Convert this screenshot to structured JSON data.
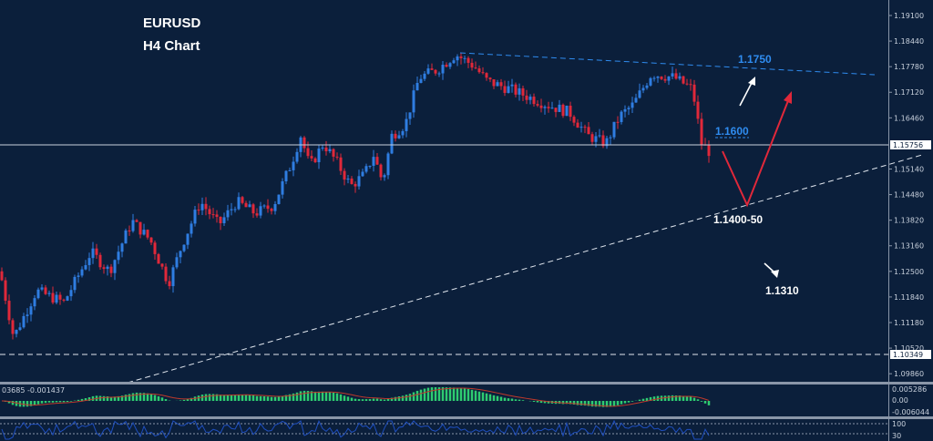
{
  "header": {
    "symbol": "EURUSD",
    "timeframe": "H4 Chart"
  },
  "colors": {
    "background": "#0b1f3b",
    "bull": "#2f7de1",
    "bear": "#e0283a",
    "macd_hist": "#2ecc71",
    "macd_signal": "#c0392b",
    "rsi": "#1f4fbf",
    "annotation_blue": "#2f8cf0"
  },
  "chart_data": {
    "type": "candlestick",
    "title": "EURUSD",
    "subtitle": "H4 Chart",
    "ylim": [
      1.0966,
      1.1945
    ],
    "yticks": [
      "1.19100",
      "1.18440",
      "1.17780",
      "1.17120",
      "1.16460",
      "1.15140",
      "1.14480",
      "1.13820",
      "1.13160",
      "1.12500",
      "1.11840",
      "1.11180",
      "1.10520",
      "1.09860"
    ],
    "current_price": "1.15756",
    "marked_level": "1.10349",
    "approx_close_path": [
      [
        0,
        1.125
      ],
      [
        15,
        1.108
      ],
      [
        40,
        1.12
      ],
      [
        70,
        1.117
      ],
      [
        100,
        1.13
      ],
      [
        120,
        1.125
      ],
      [
        145,
        1.138
      ],
      [
        165,
        1.133
      ],
      [
        185,
        1.122
      ],
      [
        200,
        1.132
      ],
      [
        220,
        1.143
      ],
      [
        240,
        1.137
      ],
      [
        260,
        1.143
      ],
      [
        280,
        1.14
      ],
      [
        300,
        1.142
      ],
      [
        320,
        1.153
      ],
      [
        330,
        1.16
      ],
      [
        340,
        1.152
      ],
      [
        355,
        1.158
      ],
      [
        370,
        1.153
      ],
      [
        385,
        1.147
      ],
      [
        400,
        1.15
      ],
      [
        410,
        1.155
      ],
      [
        420,
        1.148
      ],
      [
        430,
        1.16
      ],
      [
        445,
        1.163
      ],
      [
        460,
        1.175
      ],
      [
        480,
        1.177
      ],
      [
        500,
        1.181
      ],
      [
        520,
        1.178
      ],
      [
        535,
        1.174
      ],
      [
        560,
        1.172
      ],
      [
        580,
        1.17
      ],
      [
        600,
        1.168
      ],
      [
        625,
        1.166
      ],
      [
        645,
        1.16
      ],
      [
        665,
        1.158
      ],
      [
        680,
        1.165
      ],
      [
        695,
        1.168
      ],
      [
        715,
        1.176
      ],
      [
        740,
        1.175
      ],
      [
        760,
        1.172
      ],
      [
        770,
        1.158
      ],
      [
        778,
        1.156
      ]
    ],
    "annotations": [
      {
        "text": "1.1750",
        "color": "#2f8cf0"
      },
      {
        "text": "1.1600",
        "color": "#2f8cf0"
      },
      {
        "text": "1.1400-50",
        "color": "#ffffff"
      },
      {
        "text": "1.1310",
        "color": "#ffffff"
      }
    ],
    "macd": {
      "label": "03685 -0.001437",
      "yticks": [
        "0.005286",
        "0.00",
        "-0.006044"
      ]
    },
    "oscillator": {
      "yticks": [
        "100",
        "30"
      ]
    }
  }
}
